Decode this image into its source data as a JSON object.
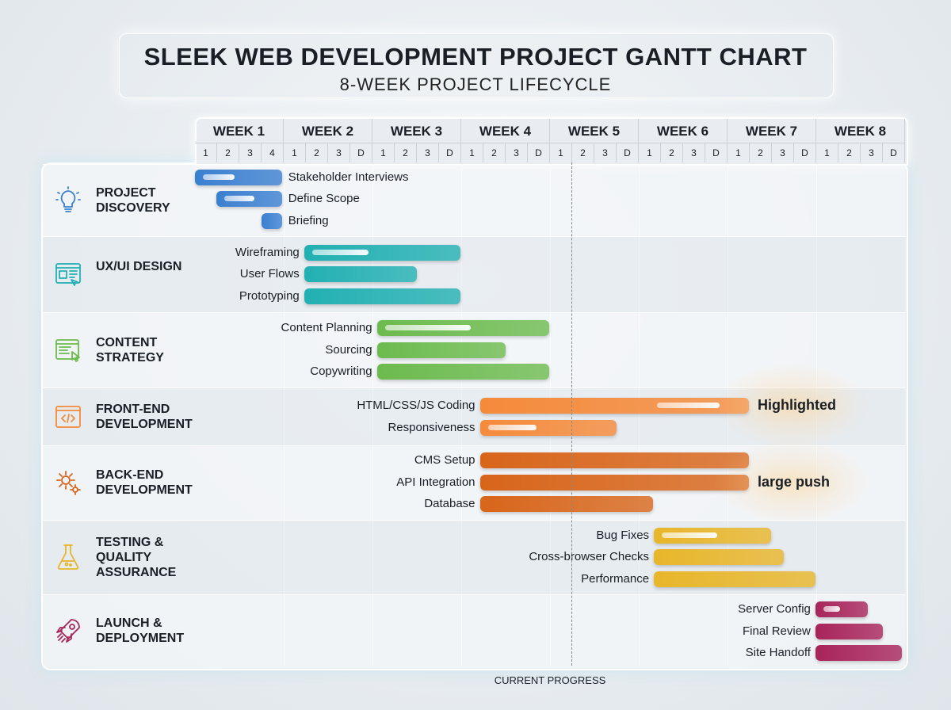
{
  "title": "SLEEK WEB DEVELOPMENT PROJECT GANTT CHART",
  "subtitle": "8-WEEK PROJECT LIFECYCLE",
  "chart_data": {
    "type": "gantt",
    "x_unit": "weeks",
    "xlim": [
      0,
      8
    ],
    "weeks": [
      "WEEK 1",
      "WEEK 2",
      "WEEK 3",
      "WEEK 4",
      "WEEK 5",
      "WEEK 6",
      "WEEK 7",
      "WEEK 8"
    ],
    "subdivisions": [
      [
        "1",
        "2",
        "3",
        "4"
      ],
      [
        "1",
        "2",
        "3",
        "D"
      ],
      [
        "1",
        "2",
        "3",
        "D"
      ],
      [
        "1",
        "2",
        "3",
        "D"
      ],
      [
        "1",
        "2",
        "3",
        "D"
      ],
      [
        "1",
        "2",
        "3",
        "D"
      ],
      [
        "1",
        "2",
        "3",
        "D"
      ],
      [
        "1",
        "2",
        "3",
        "D"
      ]
    ],
    "current_progress": {
      "label": "CURRENT PROGRESS",
      "week": 4.24
    },
    "groups": [
      {
        "name": "PROJECT DISCOVERY",
        "icon": "lightbulb-icon",
        "color": "#3a7fd0",
        "tasks": [
          {
            "name": "Stakeholder Interviews",
            "start": 0,
            "end": 0.98,
            "progress": 0.45
          },
          {
            "name": "Define Scope",
            "start": 0.24,
            "end": 0.98,
            "progress": 0.6
          },
          {
            "name": "Briefing",
            "start": 0.75,
            "end": 0.98,
            "progress": null
          }
        ]
      },
      {
        "name": "UX/UI DESIGN",
        "icon": "wireframe-icon",
        "color": "#22b0b2",
        "tasks": [
          {
            "name": "Wireframing",
            "start": 1.23,
            "end": 2.99,
            "progress": 0.4
          },
          {
            "name": "User Flows",
            "start": 1.23,
            "end": 2.5,
            "progress": null
          },
          {
            "name": "Prototyping",
            "start": 1.23,
            "end": 2.99,
            "progress": null
          }
        ]
      },
      {
        "name": "CONTENT STRATEGY",
        "icon": "document-hand-icon",
        "color": "#6cbb4e",
        "tasks": [
          {
            "name": "Content Planning",
            "start": 2.05,
            "end": 3.99,
            "progress": 0.55
          },
          {
            "name": "Sourcing",
            "start": 2.05,
            "end": 3.5,
            "progress": null
          },
          {
            "name": "Copywriting",
            "start": 2.05,
            "end": 3.99,
            "progress": null
          }
        ]
      },
      {
        "name": "FRONT-END DEVELOPMENT",
        "icon": "code-icon",
        "color": "#f58a3a",
        "annotation": "Highlighted",
        "tasks": [
          {
            "name": "HTML/CSS/JS Coding",
            "start": 3.21,
            "end": 6.24,
            "progress": 0.9
          },
          {
            "name": "Responsiveness",
            "start": 3.21,
            "end": 4.75,
            "progress": 0.4
          }
        ]
      },
      {
        "name": "BACK-END DEVELOPMENT",
        "icon": "gears-icon",
        "color": "#d8651a",
        "annotation": "large push",
        "tasks": [
          {
            "name": "CMS Setup",
            "start": 3.21,
            "end": 6.24,
            "progress": null
          },
          {
            "name": "API Integration",
            "start": 3.21,
            "end": 6.24,
            "progress": null
          },
          {
            "name": "Database",
            "start": 3.21,
            "end": 5.16,
            "progress": null
          }
        ]
      },
      {
        "name": "TESTING & QUALITY ASSURANCE",
        "icon": "flask-icon",
        "color": "#e8b62a",
        "tasks": [
          {
            "name": "Bug Fixes",
            "start": 5.17,
            "end": 6.49,
            "progress": 0.55
          },
          {
            "name": "Cross-browser Checks",
            "start": 5.17,
            "end": 6.63,
            "progress": null
          },
          {
            "name": "Performance",
            "start": 5.17,
            "end": 6.99,
            "progress": null
          }
        ]
      },
      {
        "name": "LAUNCH & DEPLOYMENT",
        "icon": "rocket-icon",
        "color": "#a8245a",
        "tasks": [
          {
            "name": "Server Config",
            "start": 6.99,
            "end": 7.58,
            "progress": 0.45
          },
          {
            "name": "Final Review",
            "start": 6.99,
            "end": 7.75,
            "progress": null
          },
          {
            "name": "Site Handoff",
            "start": 6.99,
            "end": 7.96,
            "progress": null
          }
        ]
      }
    ]
  }
}
